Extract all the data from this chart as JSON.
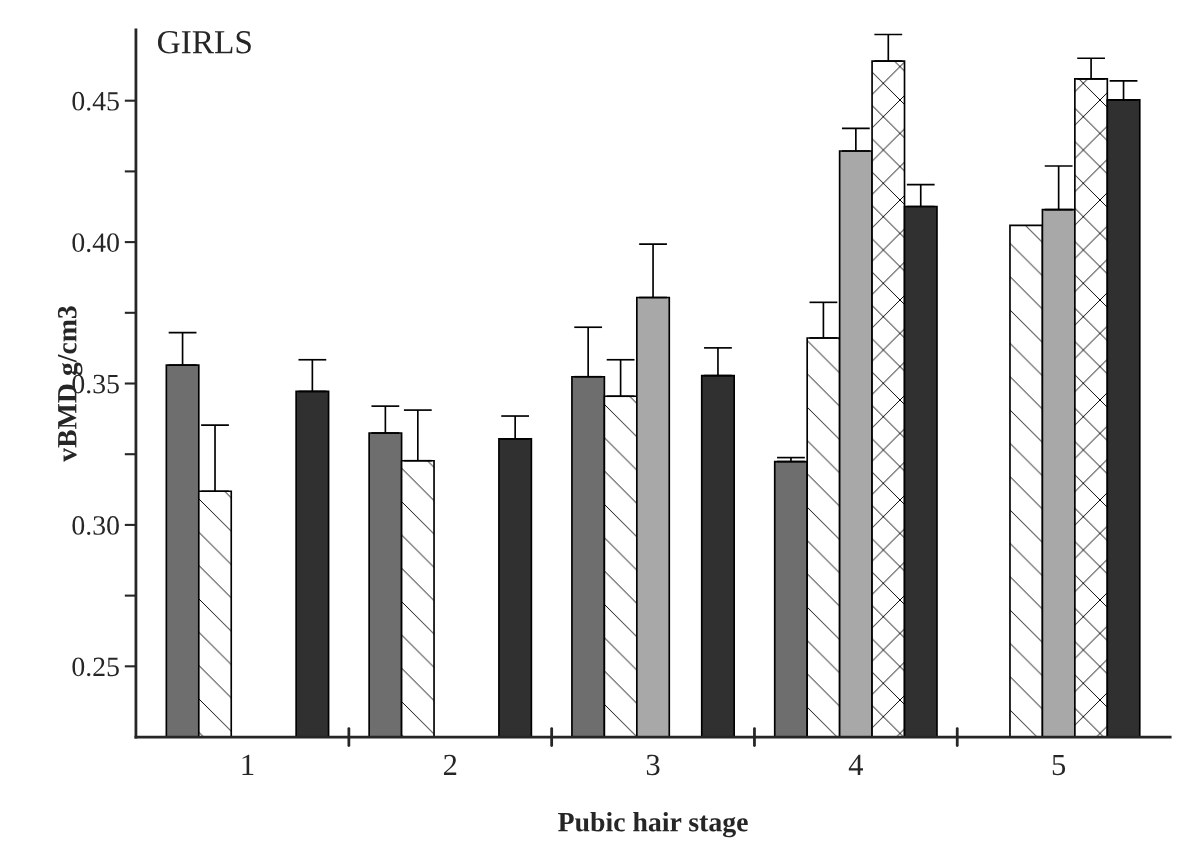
{
  "chart_data": {
    "type": "bar",
    "title": "GIRLS",
    "xlabel": "Pubic hair stage",
    "ylabel": "vBMD g/cm3",
    "categories": [
      "1",
      "2",
      "3",
      "4",
      "5"
    ],
    "series": [
      {
        "color": "#6e6e6e",
        "values": [
          0.3565,
          0.3325,
          0.3524,
          0.3224,
          null
        ],
        "errors": [
          0.0115,
          0.0095,
          0.0175,
          0.0014,
          null
        ]
      },
      {
        "color": "#ffffff",
        "values": [
          0.3119,
          0.3227,
          0.3455,
          0.3661,
          0.4059
        ],
        "errors": [
          0.0234,
          0.0179,
          0.0129,
          0.0126,
          null
        ]
      },
      {
        "color": "#a8a8a8",
        "values": [
          null,
          null,
          0.3804,
          0.4322,
          0.4115
        ],
        "errors": [
          null,
          null,
          0.0189,
          0.008,
          0.0154
        ]
      },
      {
        "color": "#ffffff",
        "values": [
          null,
          null,
          null,
          0.464,
          0.4577
        ],
        "errors": [
          null,
          null,
          null,
          0.0094,
          0.0073
        ]
      },
      {
        "color": "#303030",
        "values": [
          0.3472,
          0.3304,
          0.3528,
          0.4126,
          0.4503
        ],
        "errors": [
          0.0112,
          0.0081,
          0.0098,
          0.0077,
          0.0067
        ]
      }
    ],
    "ylim": [
      0.225,
      0.475
    ],
    "yticks": [
      {
        "value": 0.25,
        "label": "0.25"
      },
      {
        "value": 0.275,
        "label": null
      },
      {
        "value": 0.3,
        "label": "0.30"
      },
      {
        "value": 0.325,
        "label": null
      },
      {
        "value": 0.35,
        "label": "0.35"
      },
      {
        "value": 0.375,
        "label": null
      },
      {
        "value": 0.4,
        "label": "0.40"
      },
      {
        "value": 0.425,
        "label": null
      },
      {
        "value": 0.45,
        "label": "0.45"
      }
    ],
    "grid": false,
    "legend": false
  }
}
